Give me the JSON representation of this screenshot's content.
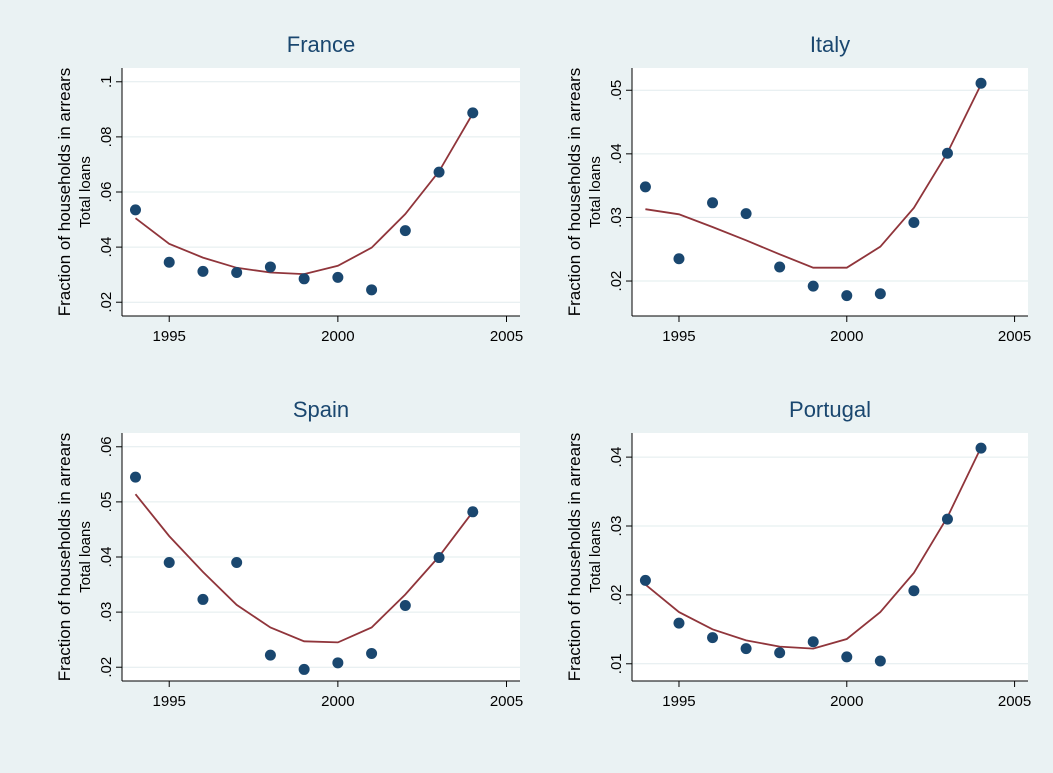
{
  "figure": {
    "background": "#eaf2f3",
    "plot_background": "#ffffff",
    "grid_color": "#e2ecee",
    "axis_color": "#000000",
    "title_color": "#1a476f",
    "marker_color": "#1a476f",
    "line_color": "#90353b",
    "ylabel_line1": "Fraction of households in arrears",
    "ylabel_line2": "Total loans"
  },
  "chart_data": [
    {
      "type": "scatter",
      "title": "France",
      "xlabel": "",
      "ylabel": "Fraction of households in arrears",
      "ylabel_sub": "Total loans",
      "xlim": [
        1993.6,
        2005.4
      ],
      "ylim": [
        0.015,
        0.105
      ],
      "x_ticks": [
        1995,
        2000,
        2005
      ],
      "x_tick_labels": [
        "1995",
        "2000",
        "2005"
      ],
      "y_ticks": [
        0.02,
        0.04,
        0.06,
        0.08,
        0.1
      ],
      "y_tick_labels": [
        ".02",
        ".04",
        ".06",
        ".08",
        ".1"
      ],
      "grid": true,
      "series": [
        {
          "kind": "points",
          "x": [
            1994,
            1995,
            1996,
            1997,
            1998,
            1999,
            2000,
            2001,
            2002,
            2003,
            2004
          ],
          "y": [
            0.0535,
            0.0345,
            0.0312,
            0.0308,
            0.0328,
            0.0285,
            0.029,
            0.0245,
            0.046,
            0.0672,
            0.0887
          ]
        },
        {
          "kind": "fit",
          "x": [
            1994,
            1995,
            1996,
            1997,
            1998,
            1999,
            2000,
            2001,
            2002,
            2003,
            2004
          ],
          "y": [
            0.0505,
            0.0412,
            0.0362,
            0.0325,
            0.0308,
            0.0302,
            0.0332,
            0.0398,
            0.052,
            0.0675,
            0.0885
          ]
        }
      ]
    },
    {
      "type": "scatter",
      "title": "Italy",
      "xlabel": "",
      "ylabel": "Fraction of households in arrears",
      "ylabel_sub": "Total loans",
      "xlim": [
        1993.6,
        2005.4
      ],
      "ylim": [
        0.0145,
        0.0535
      ],
      "x_ticks": [
        1995,
        2000,
        2005
      ],
      "x_tick_labels": [
        "1995",
        "2000",
        "2005"
      ],
      "y_ticks": [
        0.02,
        0.03,
        0.04,
        0.05
      ],
      "y_tick_labels": [
        ".02",
        ".03",
        ".04",
        ".05"
      ],
      "grid": true,
      "series": [
        {
          "kind": "points",
          "x": [
            1994,
            1995,
            1996,
            1997,
            1998,
            1999,
            2000,
            2001,
            2002,
            2003,
            2004
          ],
          "y": [
            0.0348,
            0.0235,
            0.0323,
            0.0306,
            0.0222,
            0.0192,
            0.0177,
            0.018,
            0.0292,
            0.0401,
            0.0511
          ]
        },
        {
          "kind": "fit",
          "x": [
            1994,
            1995,
            1996,
            1997,
            1998,
            1999,
            2000,
            2001,
            2002,
            2003,
            2004
          ],
          "y": [
            0.0313,
            0.0305,
            0.0285,
            0.0264,
            0.0242,
            0.0221,
            0.0221,
            0.0254,
            0.0315,
            0.0402,
            0.0509
          ]
        }
      ]
    },
    {
      "type": "scatter",
      "title": "Spain",
      "xlabel": "",
      "ylabel": "Fraction of households in arrears",
      "ylabel_sub": "Total loans",
      "xlim": [
        1993.6,
        2005.4
      ],
      "ylim": [
        0.0175,
        0.0625
      ],
      "x_ticks": [
        1995,
        2000,
        2005
      ],
      "x_tick_labels": [
        "1995",
        "2000",
        "2005"
      ],
      "y_ticks": [
        0.02,
        0.03,
        0.04,
        0.05,
        0.06
      ],
      "y_tick_labels": [
        ".02",
        ".03",
        ".04",
        ".05",
        ".06"
      ],
      "grid": true,
      "series": [
        {
          "kind": "points",
          "x": [
            1994,
            1995,
            1996,
            1997,
            1998,
            1999,
            2000,
            2001,
            2002,
            2003,
            2004
          ],
          "y": [
            0.0545,
            0.039,
            0.0323,
            0.039,
            0.0222,
            0.0196,
            0.0208,
            0.0225,
            0.0312,
            0.0399,
            0.0482
          ]
        },
        {
          "kind": "fit",
          "x": [
            1994,
            1995,
            1996,
            1997,
            1998,
            1999,
            2000,
            2001,
            2002,
            2003,
            2004
          ],
          "y": [
            0.0514,
            0.0438,
            0.0373,
            0.0313,
            0.0272,
            0.0247,
            0.0245,
            0.0272,
            0.0332,
            0.0401,
            0.0482
          ]
        }
      ]
    },
    {
      "type": "scatter",
      "title": "Portugal",
      "xlabel": "",
      "ylabel": "Fraction of households in arrears",
      "ylabel_sub": "Total loans",
      "xlim": [
        1993.6,
        2005.4
      ],
      "ylim": [
        0.0075,
        0.0435
      ],
      "x_ticks": [
        1995,
        2000,
        2005
      ],
      "x_tick_labels": [
        "1995",
        "2000",
        "2005"
      ],
      "y_ticks": [
        0.01,
        0.02,
        0.03,
        0.04
      ],
      "y_tick_labels": [
        ".01",
        ".02",
        ".03",
        ".04"
      ],
      "grid": true,
      "series": [
        {
          "kind": "points",
          "x": [
            1994,
            1995,
            1996,
            1997,
            1998,
            1999,
            2000,
            2001,
            2002,
            2003,
            2004
          ],
          "y": [
            0.0221,
            0.0159,
            0.0138,
            0.0122,
            0.0116,
            0.0132,
            0.011,
            0.0104,
            0.0206,
            0.031,
            0.0413
          ]
        },
        {
          "kind": "fit",
          "x": [
            1994,
            1995,
            1996,
            1997,
            1998,
            1999,
            2000,
            2001,
            2002,
            2003,
            2004
          ],
          "y": [
            0.0215,
            0.0175,
            0.015,
            0.0134,
            0.0125,
            0.0122,
            0.0136,
            0.0175,
            0.0232,
            0.0313,
            0.0414
          ]
        }
      ]
    }
  ]
}
